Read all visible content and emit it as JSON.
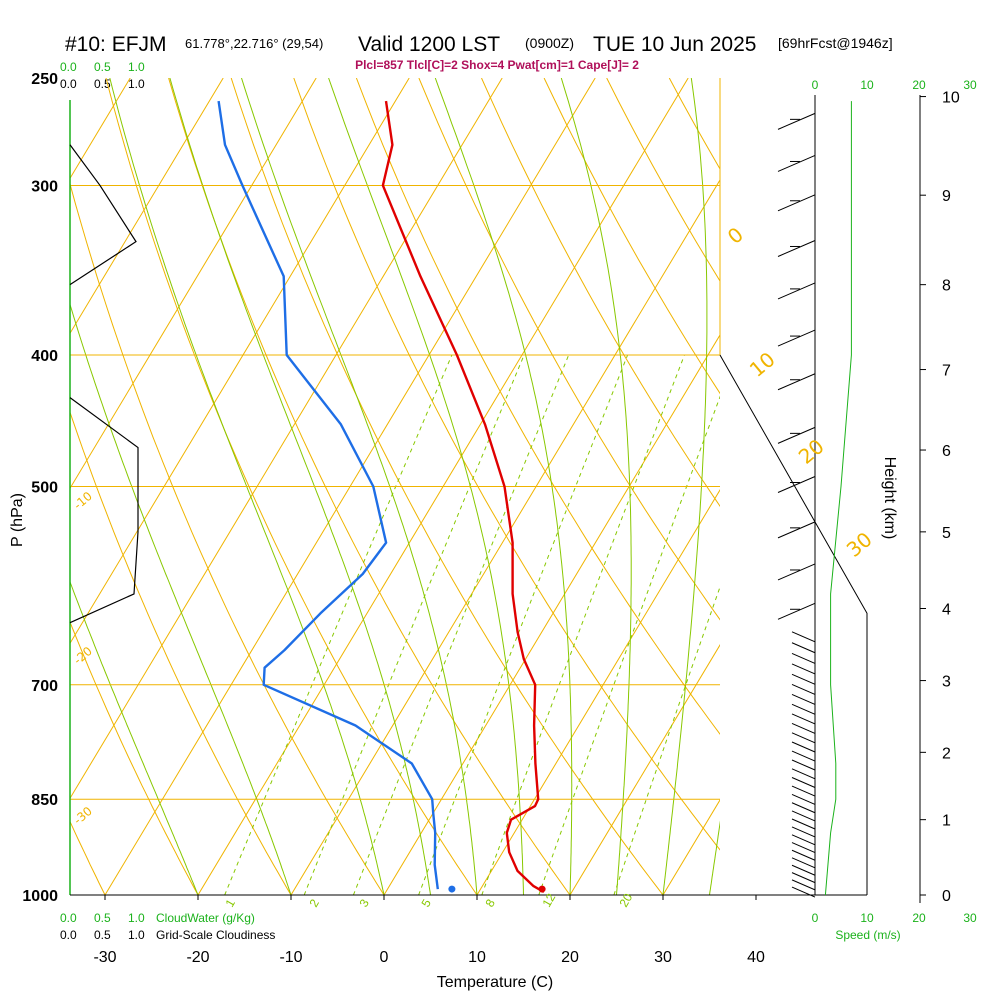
{
  "header": {
    "station": "#10: EFJM",
    "coords": "61.778°,22.716° (29,54)",
    "valid": "Valid 1200 LST",
    "utc": "(0900Z)",
    "date": "TUE 10 Jun 2025",
    "forecast": "[69hrFcst@1946z]",
    "indices": "Plcl=857 Tlcl[C]=2 Shox=4 Pwat[cm]=1 Cape[J]= 2"
  },
  "colors": {
    "temperature": "#e00000",
    "dewpoint": "#1e6ee6",
    "isotherm": "#f0b400",
    "dry_adiabat": "#f0b400",
    "moist_adiabat": "#88c800",
    "mixing_ratio": "#88c800",
    "wind_speed": "#1bb21b",
    "cloud": "#000000"
  },
  "cloud_scale": {
    "cloudwater_ticks": [
      "0.0",
      "0.5",
      "1.0"
    ],
    "cloudiness_ticks": [
      "0.0",
      "0.5",
      "1.0"
    ],
    "cloudwater_label": "CloudWater (g/Kg)",
    "cloudiness_label": "Grid-Scale Cloudiness"
  },
  "speed_axis": {
    "ticks": [
      "0",
      "10",
      "20",
      "30"
    ],
    "label": "Speed (m/s)"
  },
  "chart_data": {
    "type": "line",
    "title": "Skew-T log-P sounding",
    "xlabel": "Temperature (C)",
    "ylabel": "P (hPa)",
    "y2label": "Height (km)",
    "x_ticks": [
      "-30",
      "-20",
      "-10",
      "0",
      "10",
      "20",
      "30",
      "40"
    ],
    "y_ticks": [
      "250",
      "300",
      "400",
      "500",
      "700",
      "850",
      "1000"
    ],
    "y2_ticks": [
      "0",
      "1",
      "2",
      "3",
      "4",
      "5",
      "6",
      "7",
      "8",
      "9",
      "10"
    ],
    "xlim": [
      -35,
      45
    ],
    "ylim": [
      1000,
      250
    ],
    "isotherm_labels": [
      "-30",
      "-20",
      "-10",
      "0",
      "10",
      "20",
      "30"
    ],
    "mixing_ratio_labels": [
      "1",
      "2",
      "3",
      "5",
      "8",
      "12",
      "20"
    ],
    "series": [
      {
        "name": "Temperature",
        "color": "#e00000",
        "points": [
          {
            "p": 995,
            "t": 17.0
          },
          {
            "p": 985,
            "t": 15.5
          },
          {
            "p": 960,
            "t": 12.8
          },
          {
            "p": 930,
            "t": 10.7
          },
          {
            "p": 900,
            "t": 9.2
          },
          {
            "p": 880,
            "t": 8.8
          },
          {
            "p": 860,
            "t": 10.5
          },
          {
            "p": 850,
            "t": 10.4
          },
          {
            "p": 800,
            "t": 7.8
          },
          {
            "p": 750,
            "t": 5.2
          },
          {
            "p": 700,
            "t": 2.7
          },
          {
            "p": 670,
            "t": -0.2
          },
          {
            "p": 640,
            "t": -2.6
          },
          {
            "p": 600,
            "t": -5.6
          },
          {
            "p": 550,
            "t": -8.9
          },
          {
            "p": 500,
            "t": -13.4
          },
          {
            "p": 450,
            "t": -19.5
          },
          {
            "p": 400,
            "t": -27.0
          },
          {
            "p": 350,
            "t": -36.0
          },
          {
            "p": 300,
            "t": -45.9
          },
          {
            "p": 280,
            "t": -47.5
          },
          {
            "p": 260,
            "t": -51.0
          }
        ]
      },
      {
        "name": "Dewpoint",
        "color": "#1e6ee6",
        "points": [
          {
            "p": 990,
            "t": 5.4
          },
          {
            "p": 950,
            "t": 3.5
          },
          {
            "p": 900,
            "t": 1.5
          },
          {
            "p": 870,
            "t": 0.0
          },
          {
            "p": 850,
            "t": -1.0
          },
          {
            "p": 800,
            "t": -5.5
          },
          {
            "p": 750,
            "t": -14.0
          },
          {
            "p": 700,
            "t": -26.5
          },
          {
            "p": 680,
            "t": -27.5
          },
          {
            "p": 660,
            "t": -26.5
          },
          {
            "p": 620,
            "t": -25.0
          },
          {
            "p": 580,
            "t": -23.0
          },
          {
            "p": 550,
            "t": -22.5
          },
          {
            "p": 500,
            "t": -27.5
          },
          {
            "p": 450,
            "t": -35.0
          },
          {
            "p": 400,
            "t": -45.3
          },
          {
            "p": 350,
            "t": -50.7
          },
          {
            "p": 300,
            "t": -61.0
          },
          {
            "p": 280,
            "t": -65.5
          },
          {
            "p": 260,
            "t": -69.0
          }
        ]
      }
    ],
    "surface": {
      "p": 1000,
      "t": 17.0,
      "td": 7.3
    },
    "wind_speed_profile": [
      {
        "p": 1000,
        "v": 2
      },
      {
        "p": 900,
        "v": 3
      },
      {
        "p": 850,
        "v": 4
      },
      {
        "p": 800,
        "v": 4
      },
      {
        "p": 700,
        "v": 3
      },
      {
        "p": 600,
        "v": 3
      },
      {
        "p": 500,
        "v": 5
      },
      {
        "p": 400,
        "v": 7
      },
      {
        "p": 300,
        "v": 7
      },
      {
        "p": 260,
        "v": 7
      }
    ]
  }
}
